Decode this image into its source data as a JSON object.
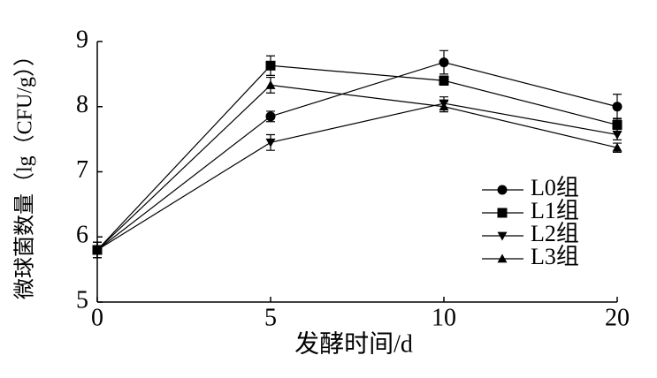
{
  "chart_data": {
    "type": "line",
    "x_label": "发酵时间/d",
    "y_label": "微球菌数量（lg（CFU/g））",
    "categories": [
      "0",
      "5",
      "10",
      "20"
    ],
    "ylim": [
      5,
      9
    ],
    "yticks": [
      5,
      6,
      7,
      8,
      9
    ],
    "legend": "lower right",
    "series": [
      {
        "name": "L0组",
        "color": "#000000",
        "marker": "circle",
        "values": [
          5.8,
          7.85,
          8.68,
          8.0
        ],
        "errors": [
          0.12,
          0.08,
          0.18,
          0.19
        ]
      },
      {
        "name": "L1组",
        "color": "#000000",
        "marker": "square",
        "values": [
          5.8,
          8.63,
          8.4,
          7.72
        ],
        "errors": [
          0.12,
          0.15,
          0.07,
          0.1
        ]
      },
      {
        "name": "L2组",
        "color": "#000000",
        "marker": "triangle-down",
        "values": [
          5.8,
          7.45,
          8.05,
          7.57
        ],
        "errors": [
          0.12,
          0.12,
          0.1,
          0.08
        ]
      },
      {
        "name": "L3组",
        "color": "#000000",
        "marker": "triangle-up",
        "values": [
          5.8,
          8.33,
          8.0,
          7.37
        ],
        "errors": [
          0.12,
          0.12,
          0.08,
          0.07
        ]
      }
    ]
  }
}
